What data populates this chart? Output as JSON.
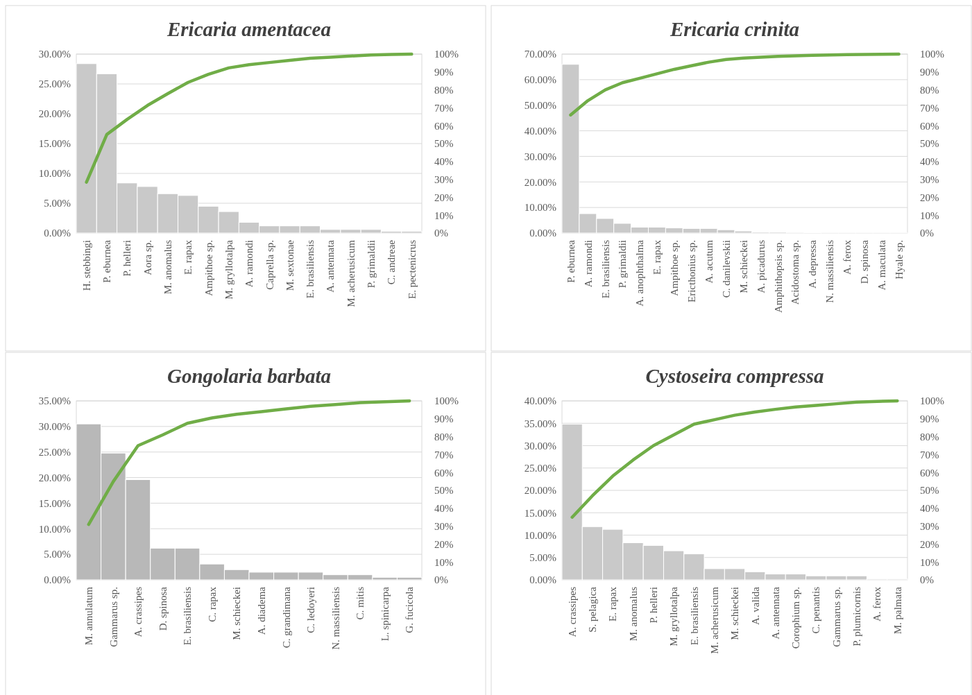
{
  "chart_data": [
    {
      "type": "bar",
      "title": "Ericaria amentacea",
      "grid": "y",
      "categories": [
        "H. stebbingi",
        "P. eburnea",
        "P. helleri",
        "Aora sp.",
        "M. anomalus",
        "E. rapax",
        "Ampithoe sp.",
        "M. gryllotalpa",
        "A. ramondi",
        "Caprella sp.",
        "M. sextonae",
        "E. brasiliensis",
        "A. antennata",
        "M. acherusicum",
        "P. grimaldii",
        "C. andreae",
        "E. pectenicrus"
      ],
      "series": [
        {
          "color": "#c9c9c9",
          "values": [
            28.4,
            26.7,
            8.4,
            7.8,
            6.6,
            6.3,
            4.5,
            3.6,
            1.8,
            1.2,
            1.2,
            1.2,
            0.6,
            0.6,
            0.6,
            0.3,
            0.3
          ]
        },
        {
          "type": "line",
          "axis": "y2",
          "color": "#70ad47",
          "values": [
            28.4,
            55.1,
            63.5,
            71.3,
            77.9,
            84.2,
            88.7,
            92.3,
            94.1,
            95.3,
            96.5,
            97.7,
            98.3,
            98.9,
            99.5,
            99.8,
            100
          ]
        }
      ],
      "ylim": [
        0,
        30
      ],
      "yticks": [
        {
          "value": 0,
          "label": "0.00%"
        },
        {
          "value": 5,
          "label": "5.00%"
        },
        {
          "value": 10,
          "label": "10.00%"
        },
        {
          "value": 15,
          "label": "15.00%"
        },
        {
          "value": 20,
          "label": "20.00%"
        },
        {
          "value": 25,
          "label": "25.00%"
        },
        {
          "value": 30,
          "label": "30.00%"
        }
      ],
      "y2lim": [
        0,
        100
      ],
      "y2ticks": [
        {
          "value": 0,
          "label": "0%"
        },
        {
          "value": 10,
          "label": "10%"
        },
        {
          "value": 20,
          "label": "20%"
        },
        {
          "value": 30,
          "label": "30%"
        },
        {
          "value": 40,
          "label": "40%"
        },
        {
          "value": 50,
          "label": "50%"
        },
        {
          "value": 60,
          "label": "60%"
        },
        {
          "value": 70,
          "label": "70%"
        },
        {
          "value": 80,
          "label": "80%"
        },
        {
          "value": 90,
          "label": "90%"
        },
        {
          "value": 100,
          "label": "100%"
        }
      ]
    },
    {
      "type": "bar",
      "title": "Ericaria crinita",
      "grid": "y",
      "categories": [
        "P. eburnea",
        "A. ramondi",
        "E. brasiliensis",
        "P. grimaldii",
        "A. anophthalma",
        "E. rapax",
        "Ampithoe sp.",
        "Ericthonius sp.",
        "A. acutum",
        "C. danilevskii",
        "M. schieckei",
        "A. picadurus",
        "Amphithopsis sp.",
        "Acidostoma sp.",
        "A. depressa",
        "N. massiliensis",
        "A. ferox",
        "D. spinosa",
        "A. maculata",
        "Hyale sp."
      ],
      "series": [
        {
          "color": "#c9c9c9",
          "values": [
            66,
            7.6,
            5.7,
            3.8,
            2.3,
            2.3,
            2.0,
            1.8,
            1.8,
            1.3,
            0.8,
            0.4,
            0.4,
            0.3,
            0.2,
            0.1,
            0.1,
            0.1,
            0.1,
            0.1
          ]
        },
        {
          "type": "line",
          "axis": "y2",
          "color": "#70ad47",
          "values": [
            66,
            74,
            80,
            84,
            86.5,
            89,
            91.5,
            93.5,
            95.5,
            97,
            97.8,
            98.3,
            98.7,
            99,
            99.3,
            99.5,
            99.7,
            99.8,
            99.9,
            100
          ]
        }
      ],
      "ylim": [
        0,
        70
      ],
      "yticks": [
        {
          "value": 0,
          "label": "0.00%"
        },
        {
          "value": 10,
          "label": "10.00%"
        },
        {
          "value": 20,
          "label": "20.00%"
        },
        {
          "value": 30,
          "label": "30.00%"
        },
        {
          "value": 40,
          "label": "40.00%"
        },
        {
          "value": 50,
          "label": "50.00%"
        },
        {
          "value": 60,
          "label": "60.00%"
        },
        {
          "value": 70,
          "label": "70.00%"
        }
      ],
      "y2lim": [
        0,
        100
      ],
      "y2ticks": [
        {
          "value": 0,
          "label": "0%"
        },
        {
          "value": 10,
          "label": "10%"
        },
        {
          "value": 20,
          "label": "20%"
        },
        {
          "value": 30,
          "label": "30%"
        },
        {
          "value": 40,
          "label": "40%"
        },
        {
          "value": 50,
          "label": "50%"
        },
        {
          "value": 60,
          "label": "60%"
        },
        {
          "value": 70,
          "label": "70%"
        },
        {
          "value": 80,
          "label": "80%"
        },
        {
          "value": 90,
          "label": "90%"
        },
        {
          "value": 100,
          "label": "100%"
        }
      ]
    },
    {
      "type": "bar",
      "title": "Gongolaria barbata",
      "grid": "y",
      "categories": [
        "M. annulatum",
        "Gammarus sp.",
        "A. crassipes",
        "D. spinosa",
        "E. brasiliensis",
        "C. rapax",
        "M. schieckei",
        "A. diadema",
        "C. grandimana",
        "C. ledoyeri",
        "N. massiliensis",
        "C. mitis",
        "L. spinicarpa",
        "G. fucicola"
      ],
      "series": [
        {
          "color": "#b8b8b8",
          "values": [
            30.5,
            24.8,
            19.6,
            6.2,
            6.2,
            3.1,
            2.0,
            1.5,
            1.5,
            1.5,
            1.0,
            1.0,
            0.5,
            0.5
          ]
        },
        {
          "type": "line",
          "axis": "y2",
          "color": "#70ad47",
          "values": [
            31,
            55,
            75,
            81,
            87.5,
            90.5,
            92.5,
            94,
            95.5,
            97,
            98,
            99,
            99.5,
            100
          ]
        }
      ],
      "ylim": [
        0,
        35
      ],
      "yticks": [
        {
          "value": 0,
          "label": "0.00%"
        },
        {
          "value": 5,
          "label": "5.00%"
        },
        {
          "value": 10,
          "label": "10.00%"
        },
        {
          "value": 15,
          "label": "15.00%"
        },
        {
          "value": 20,
          "label": "20.00%"
        },
        {
          "value": 25,
          "label": "25.00%"
        },
        {
          "value": 30,
          "label": "30.00%"
        },
        {
          "value": 35,
          "label": "35.00%"
        }
      ],
      "y2lim": [
        0,
        100
      ],
      "y2ticks": [
        {
          "value": 0,
          "label": "0%"
        },
        {
          "value": 10,
          "label": "10%"
        },
        {
          "value": 20,
          "label": "20%"
        },
        {
          "value": 30,
          "label": "30%"
        },
        {
          "value": 40,
          "label": "40%"
        },
        {
          "value": 50,
          "label": "50%"
        },
        {
          "value": 60,
          "label": "60%"
        },
        {
          "value": 70,
          "label": "70%"
        },
        {
          "value": 80,
          "label": "80%"
        },
        {
          "value": 90,
          "label": "90%"
        },
        {
          "value": 100,
          "label": "100%"
        }
      ]
    },
    {
      "type": "bar",
      "title": "Cystoseira compressa",
      "grid": "y",
      "categories": [
        "A. crassipes",
        "S. pelagica",
        "E. rapax",
        "M. anomalus",
        "P. helleri",
        "M. gryllotalpa",
        "E. brasiliensis",
        "M. acherusicum",
        "M. schieckei",
        "A. valida",
        "A. antennata",
        "Corophium sp.",
        "C. penantis",
        "Gammarus sp.",
        "P. plumicornis",
        "A. ferox",
        "M. palmata"
      ],
      "series": [
        {
          "color": "#c9c9c9",
          "values": [
            34.8,
            11.9,
            11.3,
            8.3,
            7.7,
            6.5,
            5.8,
            2.5,
            2.5,
            1.8,
            1.3,
            1.3,
            0.9,
            0.9,
            0.9,
            0.2,
            0.2
          ]
        },
        {
          "type": "line",
          "axis": "y2",
          "color": "#70ad47",
          "values": [
            35,
            47,
            58,
            67,
            75,
            81,
            87,
            89.5,
            92,
            93.8,
            95.3,
            96.6,
            97.5,
            98.4,
            99.3,
            99.7,
            100
          ]
        }
      ],
      "ylim": [
        0,
        40
      ],
      "yticks": [
        {
          "value": 0,
          "label": "0.00%"
        },
        {
          "value": 5,
          "label": "5.00%"
        },
        {
          "value": 10,
          "label": "10.00%"
        },
        {
          "value": 15,
          "label": "15.00%"
        },
        {
          "value": 20,
          "label": "20.00%"
        },
        {
          "value": 25,
          "label": "25.00%"
        },
        {
          "value": 30,
          "label": "30.00%"
        },
        {
          "value": 35,
          "label": "35.00%"
        },
        {
          "value": 40,
          "label": "40.00%"
        }
      ],
      "y2lim": [
        0,
        100
      ],
      "y2ticks": [
        {
          "value": 0,
          "label": "0%"
        },
        {
          "value": 10,
          "label": "10%"
        },
        {
          "value": 20,
          "label": "20%"
        },
        {
          "value": 30,
          "label": "30%"
        },
        {
          "value": 40,
          "label": "40%"
        },
        {
          "value": 50,
          "label": "50%"
        },
        {
          "value": 60,
          "label": "60%"
        },
        {
          "value": 70,
          "label": "70%"
        },
        {
          "value": 80,
          "label": "80%"
        },
        {
          "value": 90,
          "label": "90%"
        },
        {
          "value": 100,
          "label": "100%"
        }
      ]
    }
  ]
}
